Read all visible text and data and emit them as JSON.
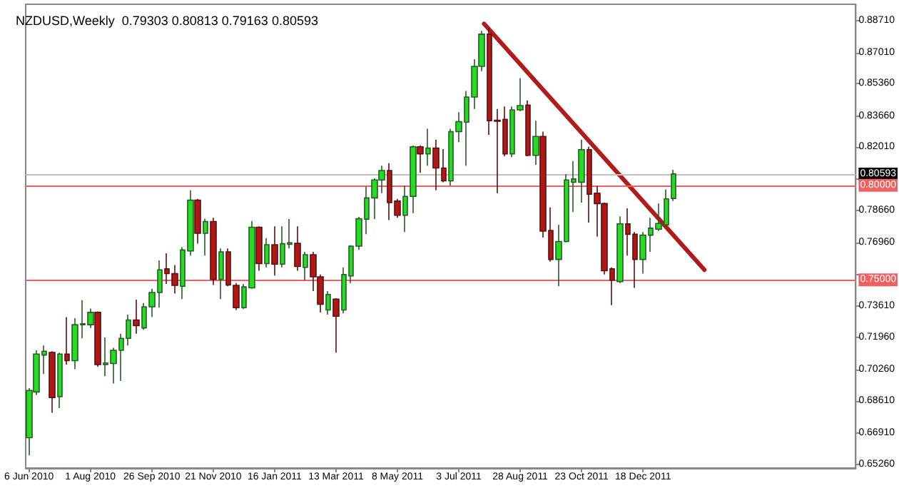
{
  "chart_data": {
    "type": "candlestick",
    "title": "NZDUSD,Weekly  0.79303 0.80813 0.79163 0.80593",
    "xlim": [
      "2010-06-03",
      "2012-06-29"
    ],
    "xticks": [
      {
        "value": "2010-06-06",
        "label": "6 Jun 2010"
      },
      {
        "value": "2010-08-01",
        "label": "1 Aug 2010"
      },
      {
        "value": "2010-09-26",
        "label": "26 Sep 2010"
      },
      {
        "value": "2010-11-21",
        "label": "21 Nov 2010"
      },
      {
        "value": "2011-01-16",
        "label": "16 Jan 2011"
      },
      {
        "value": "2011-03-13",
        "label": "13 Mar 2011"
      },
      {
        "value": "2011-05-08",
        "label": "8 May 2011"
      },
      {
        "value": "2011-07-03",
        "label": "3 Jul 2011"
      },
      {
        "value": "2011-08-28",
        "label": "28 Aug 2011"
      },
      {
        "value": "2011-10-23",
        "label": "23 Oct 2011"
      },
      {
        "value": "2011-12-18",
        "label": "18 Dec 2011"
      }
    ],
    "ylim": [
      0.6506,
      0.8956
    ],
    "yticks": [
      {
        "value": 0.6526,
        "label": "0.65260"
      },
      {
        "value": 0.6691,
        "label": "0.66910"
      },
      {
        "value": 0.6861,
        "label": "0.68610"
      },
      {
        "value": 0.7026,
        "label": "0.70260"
      },
      {
        "value": 0.7196,
        "label": "0.71960"
      },
      {
        "value": 0.7361,
        "label": "0.73610"
      },
      {
        "value": 0.7531,
        "label": null
      },
      {
        "value": 0.7696,
        "label": "0.76960"
      },
      {
        "value": 0.7866,
        "label": "0.78660"
      },
      {
        "value": 0.8031,
        "label": null
      },
      {
        "value": 0.8201,
        "label": "0.82010"
      },
      {
        "value": 0.8366,
        "label": "0.83660"
      },
      {
        "value": 0.8536,
        "label": "0.85360"
      },
      {
        "value": 0.8701,
        "label": "0.87010"
      },
      {
        "value": 0.8871,
        "label": "0.88710"
      }
    ],
    "grid": false,
    "ref_lines": [
      {
        "axis": "y",
        "value": 0.80593,
        "label": "0.80593",
        "color": "#c0c0c0"
      },
      {
        "axis": "y",
        "value": 0.8,
        "label": "0.80000",
        "color": "#f06060"
      },
      {
        "axis": "y",
        "value": 0.75,
        "label": "0.75000",
        "color": "#f06060"
      }
    ],
    "series": [
      {
        "x": [
          "2010-06-06",
          "2010-06-13",
          "2010-06-20",
          "2010-06-27",
          "2010-07-04",
          "2010-07-11",
          "2010-07-18",
          "2010-07-25",
          "2010-08-01",
          "2010-08-08",
          "2010-08-15",
          "2010-08-22",
          "2010-08-29",
          "2010-09-05",
          "2010-09-12",
          "2010-09-19",
          "2010-09-26",
          "2010-10-03",
          "2010-10-10",
          "2010-10-17",
          "2010-10-24",
          "2010-10-31",
          "2010-11-07",
          "2010-11-14",
          "2010-11-21",
          "2010-11-28",
          "2010-12-05",
          "2010-12-12",
          "2010-12-19",
          "2010-12-26",
          "2011-01-02",
          "2011-01-09",
          "2011-01-16",
          "2011-01-23",
          "2011-01-30",
          "2011-02-06",
          "2011-02-13",
          "2011-02-20",
          "2011-02-27",
          "2011-03-06",
          "2011-03-13",
          "2011-03-20",
          "2011-03-27",
          "2011-04-03",
          "2011-04-10",
          "2011-04-17",
          "2011-04-24",
          "2011-05-01",
          "2011-05-08",
          "2011-05-15",
          "2011-05-22",
          "2011-05-29",
          "2011-06-05",
          "2011-06-12",
          "2011-06-19",
          "2011-06-26",
          "2011-07-03",
          "2011-07-10",
          "2011-07-17",
          "2011-07-24",
          "2011-07-31",
          "2011-08-07",
          "2011-08-14",
          "2011-08-21",
          "2011-08-28",
          "2011-09-04",
          "2011-09-11",
          "2011-09-18",
          "2011-09-25",
          "2011-10-02",
          "2011-10-09",
          "2011-10-16",
          "2011-10-23",
          "2011-10-30",
          "2011-11-06",
          "2011-11-13",
          "2011-11-20",
          "2011-11-27",
          "2011-12-04",
          "2011-12-11",
          "2011-12-18",
          "2011-12-25",
          "2012-01-01",
          "2012-01-08",
          "2012-01-15"
        ],
        "ohlc": [
          [
            0.6666,
            0.6928,
            0.6573,
            0.6916
          ],
          [
            0.6908,
            0.7128,
            0.6891,
            0.7108
          ],
          [
            0.7103,
            0.7153,
            0.7003,
            0.7123
          ],
          [
            0.7116,
            0.7123,
            0.6798,
            0.6878
          ],
          [
            0.6883,
            0.7116,
            0.6823,
            0.7108
          ],
          [
            0.7108,
            0.7303,
            0.7053,
            0.7073
          ],
          [
            0.7073,
            0.7298,
            0.7028,
            0.7263
          ],
          [
            0.7263,
            0.7393,
            0.7191,
            0.7268
          ],
          [
            0.7263,
            0.7348,
            0.7246,
            0.7328
          ],
          [
            0.7328,
            0.7333,
            0.7041,
            0.7053
          ],
          [
            0.7053,
            0.7196,
            0.6991,
            0.7061
          ],
          [
            0.7058,
            0.7141,
            0.6953,
            0.7128
          ],
          [
            0.7128,
            0.7216,
            0.6966,
            0.7191
          ],
          [
            0.7191,
            0.7316,
            0.7153,
            0.7288
          ],
          [
            0.7288,
            0.7396,
            0.7216,
            0.7258
          ],
          [
            0.7246,
            0.7378,
            0.7236,
            0.7358
          ],
          [
            0.7358,
            0.7453,
            0.7303,
            0.7433
          ],
          [
            0.7433,
            0.7603,
            0.7353,
            0.7553
          ],
          [
            0.7558,
            0.7641,
            0.7478,
            0.7533
          ],
          [
            0.7533,
            0.7578,
            0.7428,
            0.7471
          ],
          [
            0.7466,
            0.7673,
            0.7398,
            0.7658
          ],
          [
            0.7653,
            0.7973,
            0.7628,
            0.7921
          ],
          [
            0.7921,
            0.7928,
            0.7691,
            0.7746
          ],
          [
            0.7746,
            0.7823,
            0.7628,
            0.7808
          ],
          [
            0.7808,
            0.7828,
            0.7473,
            0.7503
          ],
          [
            0.7503,
            0.7666,
            0.7398,
            0.7648
          ],
          [
            0.7648,
            0.7666,
            0.7466,
            0.7473
          ],
          [
            0.7471,
            0.7483,
            0.7341,
            0.7353
          ],
          [
            0.7353,
            0.7478,
            0.7346,
            0.7463
          ],
          [
            0.7458,
            0.7811,
            0.7453,
            0.7778
          ],
          [
            0.7778,
            0.7783,
            0.7548,
            0.7586
          ],
          [
            0.7586,
            0.7721,
            0.7566,
            0.7686
          ],
          [
            0.7686,
            0.7783,
            0.7523,
            0.7583
          ],
          [
            0.7583,
            0.7783,
            0.7566,
            0.7691
          ],
          [
            0.7688,
            0.7821,
            0.7666,
            0.7696
          ],
          [
            0.7693,
            0.7783,
            0.7548,
            0.7571
          ],
          [
            0.7566,
            0.7648,
            0.7498,
            0.7633
          ],
          [
            0.7633,
            0.7648,
            0.7441,
            0.7516
          ],
          [
            0.7516,
            0.7528,
            0.7328,
            0.7371
          ],
          [
            0.7341,
            0.7441,
            0.7316,
            0.7423
          ],
          [
            0.7398,
            0.7403,
            0.7116,
            0.7308
          ],
          [
            0.7341,
            0.7566,
            0.7323,
            0.7528
          ],
          [
            0.7521,
            0.7683,
            0.7483,
            0.7678
          ],
          [
            0.7678,
            0.7833,
            0.7658,
            0.7823
          ],
          [
            0.7821,
            0.7993,
            0.7741,
            0.7933
          ],
          [
            0.7933,
            0.8036,
            0.7821,
            0.8028
          ],
          [
            0.8028,
            0.8103,
            0.7958,
            0.8078
          ],
          [
            0.8078,
            0.8116,
            0.7816,
            0.7908
          ],
          [
            0.7916,
            0.7928,
            0.7828,
            0.7841
          ],
          [
            0.7841,
            0.7998,
            0.7753,
            0.7941
          ],
          [
            0.7941,
            0.8211,
            0.7853,
            0.8203
          ],
          [
            0.8203,
            0.8211,
            0.8066,
            0.8166
          ],
          [
            0.8166,
            0.8298,
            0.8103,
            0.8196
          ],
          [
            0.8196,
            0.8241,
            0.7973,
            0.8091
          ],
          [
            0.8091,
            0.8191,
            0.8016,
            0.8023
          ],
          [
            0.8023,
            0.8298,
            0.7998,
            0.8283
          ],
          [
            0.8283,
            0.8386,
            0.8228,
            0.8336
          ],
          [
            0.8333,
            0.8498,
            0.8103,
            0.8466
          ],
          [
            0.8466,
            0.8666,
            0.8403,
            0.8628
          ],
          [
            0.8628,
            0.8816,
            0.8603,
            0.8798
          ],
          [
            0.8798,
            0.8828,
            0.8266,
            0.8341
          ],
          [
            0.8343,
            0.8403,
            0.7958,
            0.8338
          ],
          [
            0.8348,
            0.8416,
            0.8153,
            0.8166
          ],
          [
            0.8166,
            0.8416,
            0.8148,
            0.8398
          ],
          [
            0.8398,
            0.8566,
            0.8391,
            0.8421
          ],
          [
            0.8423,
            0.8448,
            0.8153,
            0.8158
          ],
          [
            0.8158,
            0.8341,
            0.8108,
            0.8258
          ],
          [
            0.8258,
            0.8283,
            0.7723,
            0.7758
          ],
          [
            0.7761,
            0.7883,
            0.7596,
            0.7608
          ],
          [
            0.7608,
            0.7791,
            0.7466,
            0.7703
          ],
          [
            0.7703,
            0.8058,
            0.7698,
            0.8028
          ],
          [
            0.8016,
            0.8128,
            0.7858,
            0.8033
          ],
          [
            0.8016,
            0.8241,
            0.7908,
            0.8188
          ],
          [
            0.8188,
            0.8203,
            0.7803,
            0.7953
          ],
          [
            0.7958,
            0.7996,
            0.7728,
            0.7903
          ],
          [
            0.7903,
            0.7908,
            0.7528,
            0.7548
          ],
          [
            0.7558,
            0.7566,
            0.7366,
            0.7498
          ],
          [
            0.7491,
            0.7836,
            0.7483,
            0.7796
          ],
          [
            0.7796,
            0.7878,
            0.7628,
            0.7741
          ],
          [
            0.7741,
            0.7753,
            0.7458,
            0.7608
          ],
          [
            0.7608,
            0.7753,
            0.7533,
            0.7736
          ],
          [
            0.7736,
            0.7828,
            0.7648,
            0.7773
          ],
          [
            0.7768,
            0.7903,
            0.7758,
            0.7798
          ],
          [
            0.7791,
            0.7978,
            0.7783,
            0.7928
          ],
          [
            0.79303,
            0.80813,
            0.79163,
            0.80593
          ]
        ]
      },
      {
        "type": "line",
        "color": "#b01c1c",
        "x": [
          "2011-07-26",
          "2012-02-12"
        ],
        "values": [
          0.8853,
          0.7553
        ]
      }
    ]
  }
}
